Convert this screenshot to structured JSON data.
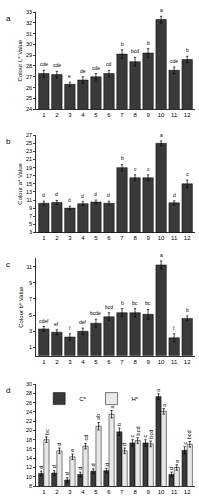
{
  "chart_data": [
    {
      "type": "bar",
      "title": "a",
      "y_label": "Colour L* Value",
      "categories": [
        "1",
        "2",
        "3",
        "4",
        "5",
        "6",
        "7",
        "8",
        "9",
        "10",
        "11",
        "12"
      ],
      "series": [
        {
          "name": "L*",
          "color": "#3a3a3a",
          "values": [
            27.3,
            27.2,
            26.3,
            26.7,
            27.0,
            27.3,
            29.1,
            28.4,
            29.2,
            32.3,
            27.6,
            28.6
          ],
          "errors": [
            0.3,
            0.3,
            0.2,
            0.3,
            0.3,
            0.3,
            0.4,
            0.4,
            0.4,
            0.3,
            0.3,
            0.3
          ],
          "letters": [
            "cde",
            "cde",
            "e",
            "de",
            "cde",
            "cd",
            "b",
            "bcd",
            "b",
            "a",
            "cde",
            "b"
          ]
        }
      ],
      "ylim": [
        24,
        33
      ],
      "yticks": [
        24,
        25,
        26,
        27,
        28,
        29,
        30,
        31,
        32,
        33
      ]
    },
    {
      "type": "bar",
      "title": "b",
      "y_label": "Colour a* Value",
      "categories": [
        "1",
        "2",
        "3",
        "4",
        "5",
        "6",
        "7",
        "8",
        "9",
        "10",
        "11",
        "12"
      ],
      "series": [
        {
          "name": "a*",
          "color": "#3a3a3a",
          "values": [
            10.2,
            10.4,
            9.0,
            10.1,
            10.5,
            10.2,
            19.0,
            16.5,
            16.5,
            25.0,
            10.3,
            15.0
          ],
          "errors": [
            0.5,
            0.5,
            0.5,
            0.5,
            0.5,
            0.5,
            0.8,
            0.7,
            0.7,
            0.6,
            0.5,
            0.9
          ],
          "letters": [
            "d",
            "d",
            "d",
            "d",
            "d",
            "d",
            "b",
            "c",
            "c",
            "a",
            "d",
            "c"
          ]
        }
      ],
      "ylim": [
        3,
        27
      ],
      "yticks": [
        3,
        5,
        7,
        9,
        11,
        13,
        15,
        17,
        19,
        21,
        23,
        25,
        27
      ]
    },
    {
      "type": "bar",
      "title": "c",
      "y_label": "Colour b* Value",
      "categories": [
        "1",
        "2",
        "3",
        "4",
        "5",
        "6",
        "7",
        "8",
        "9",
        "10",
        "11",
        "12"
      ],
      "series": [
        {
          "name": "b*",
          "color": "#3a3a3a",
          "values": [
            3.3,
            2.9,
            2.3,
            3.0,
            4.0,
            4.8,
            5.3,
            5.3,
            5.1,
            11.2,
            2.2,
            4.6
          ],
          "errors": [
            0.3,
            0.3,
            0.4,
            0.4,
            0.5,
            0.5,
            0.5,
            0.5,
            0.6,
            0.5,
            0.5,
            0.3
          ],
          "letters": [
            "cdef",
            "ef",
            "f",
            "def",
            "bcde",
            "bcd",
            "b",
            "bc",
            "bc",
            "a",
            "f",
            "b"
          ]
        }
      ],
      "ylim": [
        0,
        12
      ],
      "yticks": [
        1,
        3,
        5,
        7,
        9,
        11
      ]
    },
    {
      "type": "bar",
      "title": "d",
      "categories": [
        "1",
        "2",
        "3",
        "4",
        "5",
        "6",
        "7",
        "8",
        "9",
        "10",
        "11",
        "12"
      ],
      "series": [
        {
          "name": "C*",
          "color": "#3a3a3a",
          "values": [
            10.7,
            10.8,
            9.3,
            10.5,
            11.2,
            11.3,
            19.7,
            17.3,
            17.3,
            27.3,
            10.5,
            15.7
          ],
          "errors": [
            0.5,
            0.5,
            0.5,
            0.5,
            0.5,
            0.5,
            0.8,
            0.7,
            0.7,
            0.6,
            0.5,
            0.8
          ],
          "letters": [
            "d",
            "d",
            "d",
            "d",
            "d",
            "d",
            "b",
            "c",
            "c",
            "a",
            "d",
            "c"
          ]
        },
        {
          "name": "H*",
          "color": "#e8e8e8",
          "values": [
            18.0,
            15.6,
            14.3,
            16.6,
            20.9,
            23.5,
            15.6,
            17.8,
            17.1,
            24.1,
            12.0,
            17.0
          ],
          "errors": [
            0.6,
            0.6,
            0.6,
            0.6,
            0.8,
            0.8,
            0.6,
            0.6,
            0.6,
            0.6,
            0.6,
            0.6
          ],
          "letters": [
            "bc",
            "d",
            "e",
            "cd",
            "ab",
            "a",
            "d",
            "bcd",
            "bcd",
            "a",
            "e",
            "bcd"
          ]
        }
      ],
      "legend": "top left",
      "ylim": [
        8,
        30
      ],
      "yticks": [
        8,
        10,
        12,
        14,
        16,
        18,
        20,
        22,
        24,
        26,
        28,
        30
      ]
    }
  ]
}
